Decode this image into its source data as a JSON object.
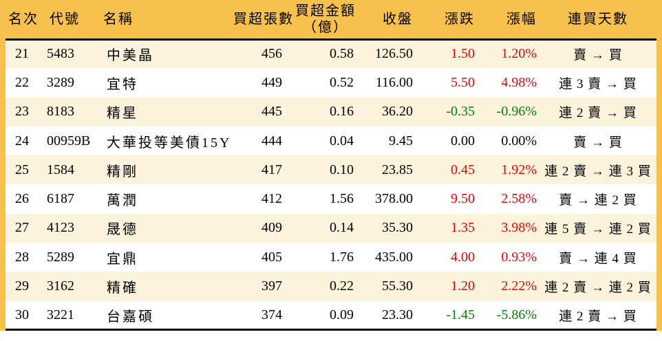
{
  "table": {
    "title_semantic": "institutional-net-buy-ranking",
    "headers": {
      "rank": "名次",
      "code": "代號",
      "name": "名稱",
      "volume": "買超張數",
      "amount_line1": "買超金額",
      "amount_line2": "（億）",
      "close": "收盤",
      "change": "漲跌",
      "change_pct": "漲幅",
      "streak": "連買天數"
    },
    "rows": [
      {
        "rank": "21",
        "code": "5483",
        "name": "中美晶",
        "volume": "456",
        "amount": "0.58",
        "close": "126.50",
        "change": "1.50",
        "change_pct": "1.20%",
        "trend": "up",
        "streak": "賣 → 買"
      },
      {
        "rank": "22",
        "code": "3289",
        "name": "宜特",
        "volume": "449",
        "amount": "0.52",
        "close": "116.00",
        "change": "5.50",
        "change_pct": "4.98%",
        "trend": "up",
        "streak": "連 3 賣 → 買"
      },
      {
        "rank": "23",
        "code": "8183",
        "name": "精星",
        "volume": "445",
        "amount": "0.16",
        "close": "36.20",
        "change": "-0.35",
        "change_pct": "-0.96%",
        "trend": "down",
        "streak": "連 2 賣 → 買"
      },
      {
        "rank": "24",
        "code": "00959B",
        "name": "大華投等美債15Y",
        "volume": "444",
        "amount": "0.04",
        "close": "9.45",
        "change": "0.00",
        "change_pct": "0.00%",
        "trend": "flat",
        "streak": "賣 → 買"
      },
      {
        "rank": "25",
        "code": "1584",
        "name": "精剛",
        "volume": "417",
        "amount": "0.10",
        "close": "23.85",
        "change": "0.45",
        "change_pct": "1.92%",
        "trend": "up",
        "streak": "連 2 賣 → 連 3 買"
      },
      {
        "rank": "26",
        "code": "6187",
        "name": "萬潤",
        "volume": "412",
        "amount": "1.56",
        "close": "378.00",
        "change": "9.50",
        "change_pct": "2.58%",
        "trend": "up",
        "streak": "賣 → 連 2 買"
      },
      {
        "rank": "27",
        "code": "4123",
        "name": "晟德",
        "volume": "409",
        "amount": "0.14",
        "close": "35.30",
        "change": "1.35",
        "change_pct": "3.98%",
        "trend": "up",
        "streak": "連 5 賣 → 連 2 買"
      },
      {
        "rank": "28",
        "code": "5289",
        "name": "宜鼎",
        "volume": "405",
        "amount": "1.76",
        "close": "435.00",
        "change": "4.00",
        "change_pct": "0.93%",
        "trend": "up",
        "streak": "賣 → 連 4 買"
      },
      {
        "rank": "29",
        "code": "3162",
        "name": "精確",
        "volume": "397",
        "amount": "0.22",
        "close": "55.30",
        "change": "1.20",
        "change_pct": "2.22%",
        "trend": "up",
        "streak": "連 2 賣 → 連 2 買"
      },
      {
        "rank": "30",
        "code": "3221",
        "name": "台嘉碩",
        "volume": "374",
        "amount": "0.09",
        "close": "23.30",
        "change": "-1.45",
        "change_pct": "-5.86%",
        "trend": "down",
        "streak": "連 2 賣 → 買"
      }
    ]
  },
  "colors": {
    "positive_change": "#ee0000",
    "negative_change": "#008000",
    "neutral_change": "#000000",
    "header_background": "#f8c04d",
    "row_stripe_background": "#fcf3dc",
    "row_background": "#ffffff",
    "separator_line": "#000000"
  }
}
